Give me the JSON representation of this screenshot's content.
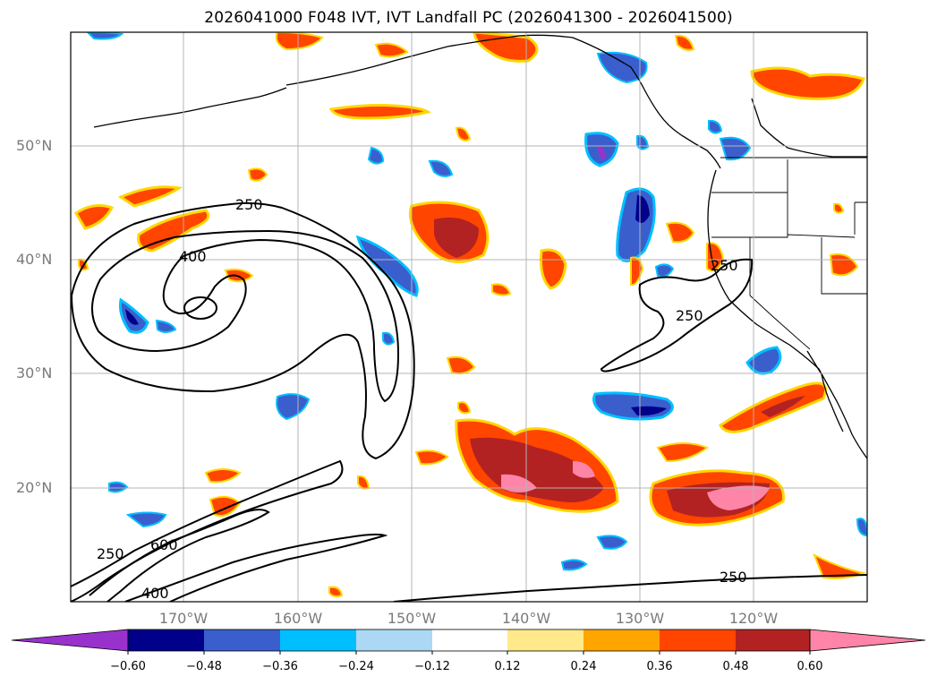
{
  "title": "2026041000 F048 IVT, IVT Landfall PC (2026041300 - 2026041500)",
  "map": {
    "region": "North-East Pacific Ocean and western North America",
    "lat_labels": [
      "50°N",
      "40°N",
      "30°N",
      "20°N"
    ],
    "lon_labels": [
      "170°W",
      "160°W",
      "150°W",
      "140°W",
      "130°W",
      "120°W"
    ],
    "contour_labels": [
      "250",
      "400",
      "250",
      "250",
      "600",
      "400",
      "250",
      "250"
    ]
  },
  "colorbar": {
    "ticks": [
      "−0.60",
      "−0.48",
      "−0.36",
      "−0.24",
      "−0.12",
      "0.12",
      "0.24",
      "0.36",
      "0.48",
      "0.60"
    ],
    "colors": [
      "#9932cc",
      "#00008b",
      "#3a5fcd",
      "#00bfff",
      "#add8f5",
      "#ffffff",
      "#ffe98a",
      "#ffa500",
      "#ff4500",
      "#b22222",
      "#ff85a8"
    ]
  }
}
